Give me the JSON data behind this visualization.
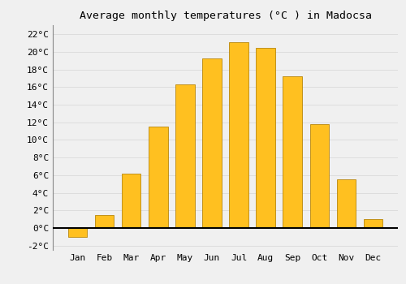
{
  "title": "Average monthly temperatures (°C ) in Madocsa",
  "months": [
    "Jan",
    "Feb",
    "Mar",
    "Apr",
    "May",
    "Jun",
    "Jul",
    "Aug",
    "Sep",
    "Oct",
    "Nov",
    "Dec"
  ],
  "values": [
    -1.0,
    1.5,
    6.2,
    11.5,
    16.3,
    19.3,
    21.1,
    20.5,
    17.2,
    11.8,
    5.5,
    1.0
  ],
  "bar_color": "#FFC020",
  "bar_edge_color": "#B8860B",
  "background_color": "#F0F0F0",
  "grid_color": "#DDDDDD",
  "ylim_min": -2.5,
  "ylim_max": 23,
  "yticks": [
    -2,
    0,
    2,
    4,
    6,
    8,
    10,
    12,
    14,
    16,
    18,
    20,
    22
  ],
  "ytick_labels": [
    "-2°C",
    "0°C",
    "2°C",
    "4°C",
    "6°C",
    "8°C",
    "10°C",
    "12°C",
    "14°C",
    "16°C",
    "18°C",
    "20°C",
    "22°C"
  ],
  "title_fontsize": 9.5,
  "tick_fontsize": 8,
  "zero_line_color": "#000000",
  "bar_width": 0.7
}
